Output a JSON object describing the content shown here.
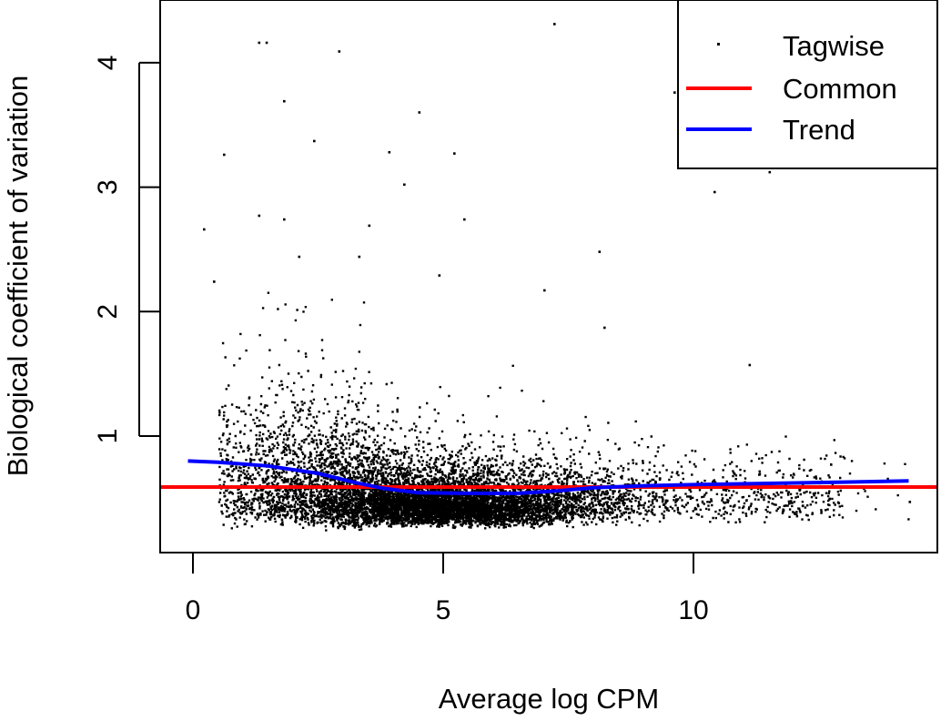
{
  "chart_data": {
    "type": "scatter",
    "title": "",
    "xlabel": "Average log CPM",
    "ylabel": "Biological coefficient of variation",
    "xlim": [
      -0.6,
      14.9
    ],
    "ylim": [
      0.0,
      4.45
    ],
    "xticks": [
      0,
      5,
      10
    ],
    "yticks": [
      1,
      2,
      3,
      4
    ],
    "grid": false,
    "legend": {
      "placement": "top-right",
      "entries": [
        {
          "label": "Tagwise",
          "kind": "point",
          "color": "#000000"
        },
        {
          "label": "Common",
          "kind": "line",
          "color": "#ff0000"
        },
        {
          "label": "Trend",
          "kind": "line",
          "color": "#0000ff"
        }
      ]
    },
    "series": [
      {
        "name": "Tagwise",
        "color": "#000000",
        "cloud": {
          "count": 9000,
          "x_center": 4.6,
          "x_sd": 1.8,
          "x_range": [
            0.3,
            14.3
          ],
          "y_floor": 0.22
        },
        "outliers": [
          [
            1.3,
            4.17
          ],
          [
            1.45,
            4.17
          ],
          [
            2.9,
            4.1
          ],
          [
            7.2,
            4.32
          ],
          [
            1.8,
            3.7
          ],
          [
            4.5,
            3.61
          ],
          [
            0.6,
            3.27
          ],
          [
            2.4,
            3.38
          ],
          [
            3.9,
            3.29
          ],
          [
            5.2,
            3.28
          ],
          [
            10.4,
            2.97
          ],
          [
            11.5,
            3.13
          ],
          [
            4.2,
            3.03
          ],
          [
            0.2,
            2.67
          ],
          [
            1.3,
            2.78
          ],
          [
            1.8,
            2.75
          ],
          [
            3.5,
            2.7
          ],
          [
            5.4,
            2.75
          ],
          [
            8.1,
            2.49
          ],
          [
            0.4,
            2.25
          ],
          [
            7.0,
            2.18
          ],
          [
            11.1,
            1.58
          ],
          [
            8.2,
            1.88
          ],
          [
            9.6,
            3.77
          ],
          [
            14.3,
            0.48
          ],
          [
            2.1,
            2.45
          ],
          [
            3.3,
            2.45
          ],
          [
            4.9,
            2.3
          ]
        ]
      },
      {
        "name": "Common",
        "color": "#ff0000",
        "value": 0.59
      },
      {
        "name": "Trend",
        "color": "#0000ff",
        "x": [
          -0.1,
          0.5,
          1.5,
          2.5,
          3.2,
          3.8,
          4.5,
          5.5,
          6.5,
          7.3,
          8.0,
          9.0,
          10.0,
          11.5,
          13.0,
          14.3
        ],
        "y": [
          0.8,
          0.79,
          0.76,
          0.7,
          0.63,
          0.58,
          0.545,
          0.54,
          0.54,
          0.56,
          0.585,
          0.6,
          0.61,
          0.62,
          0.63,
          0.64
        ]
      }
    ]
  }
}
